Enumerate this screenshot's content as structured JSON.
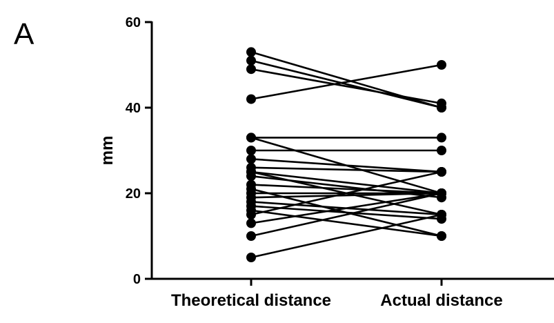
{
  "panel_label": "A",
  "chart_data": {
    "type": "line",
    "categories": [
      "Theoretical distance",
      "Actual distance"
    ],
    "ylabel": "mm",
    "ylim": [
      0,
      60
    ],
    "yticks": [
      0,
      20,
      40,
      60
    ],
    "grid": false,
    "legend": "none",
    "series": [
      {
        "values": [
          53,
          40
        ]
      },
      {
        "values": [
          51,
          40
        ]
      },
      {
        "values": [
          49,
          41
        ]
      },
      {
        "values": [
          42,
          50
        ]
      },
      {
        "values": [
          33,
          33
        ]
      },
      {
        "values": [
          33,
          20
        ]
      },
      {
        "values": [
          30,
          30
        ]
      },
      {
        "values": [
          28,
          25
        ]
      },
      {
        "values": [
          26,
          25
        ]
      },
      {
        "values": [
          25,
          15
        ]
      },
      {
        "values": [
          25,
          20
        ]
      },
      {
        "values": [
          24,
          19
        ]
      },
      {
        "values": [
          22,
          20
        ]
      },
      {
        "values": [
          21,
          10
        ]
      },
      {
        "values": [
          20,
          20
        ]
      },
      {
        "values": [
          19,
          20
        ]
      },
      {
        "values": [
          18,
          15
        ]
      },
      {
        "values": [
          17,
          14
        ]
      },
      {
        "values": [
          16,
          10
        ]
      },
      {
        "values": [
          15,
          25
        ]
      },
      {
        "values": [
          13,
          20
        ]
      },
      {
        "values": [
          10,
          20
        ]
      },
      {
        "values": [
          5,
          15
        ]
      }
    ]
  }
}
